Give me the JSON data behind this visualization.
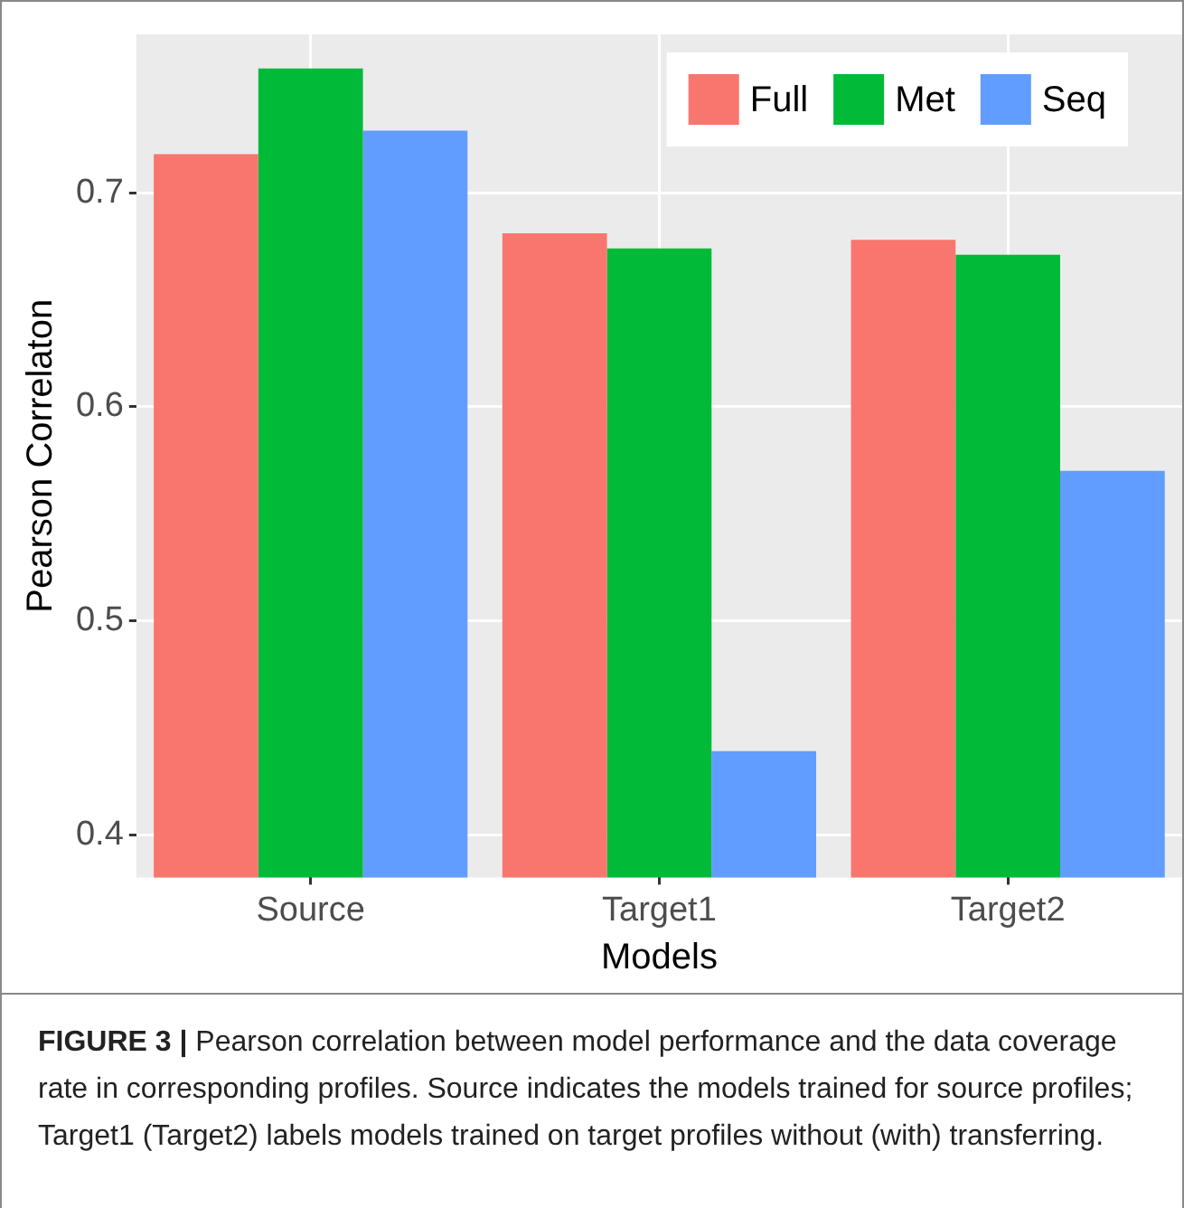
{
  "chart_data": {
    "type": "bar",
    "xlabel": "Models",
    "ylabel": "Pearson Correlaton",
    "categories": [
      "Source",
      "Target1",
      "Target2"
    ],
    "series": [
      {
        "name": "Full",
        "color": "#f8766d",
        "values": [
          0.718,
          0.681,
          0.678
        ]
      },
      {
        "name": "Met",
        "color": "#00ba38",
        "values": [
          0.758,
          0.674,
          0.671
        ]
      },
      {
        "name": "Seq",
        "color": "#619cff",
        "values": [
          0.729,
          0.439,
          0.57
        ]
      }
    ],
    "ylim": [
      0.38,
      0.774
    ],
    "yticks": [
      {
        "value": 0.4,
        "label": "0.4"
      },
      {
        "value": 0.5,
        "label": "0.5"
      },
      {
        "value": 0.6,
        "label": "0.6"
      },
      {
        "value": 0.7,
        "label": "0.7"
      }
    ],
    "grid": true,
    "legend": "top right",
    "annotations": [
      "FIGURE 3 | Pearson correlation between model performance and the data coverage rate in corresponding profiles. Source indicates the models trained for source profiles; Target1 (Target2) labels models trained on target profiles without (with) transferring."
    ]
  }
}
